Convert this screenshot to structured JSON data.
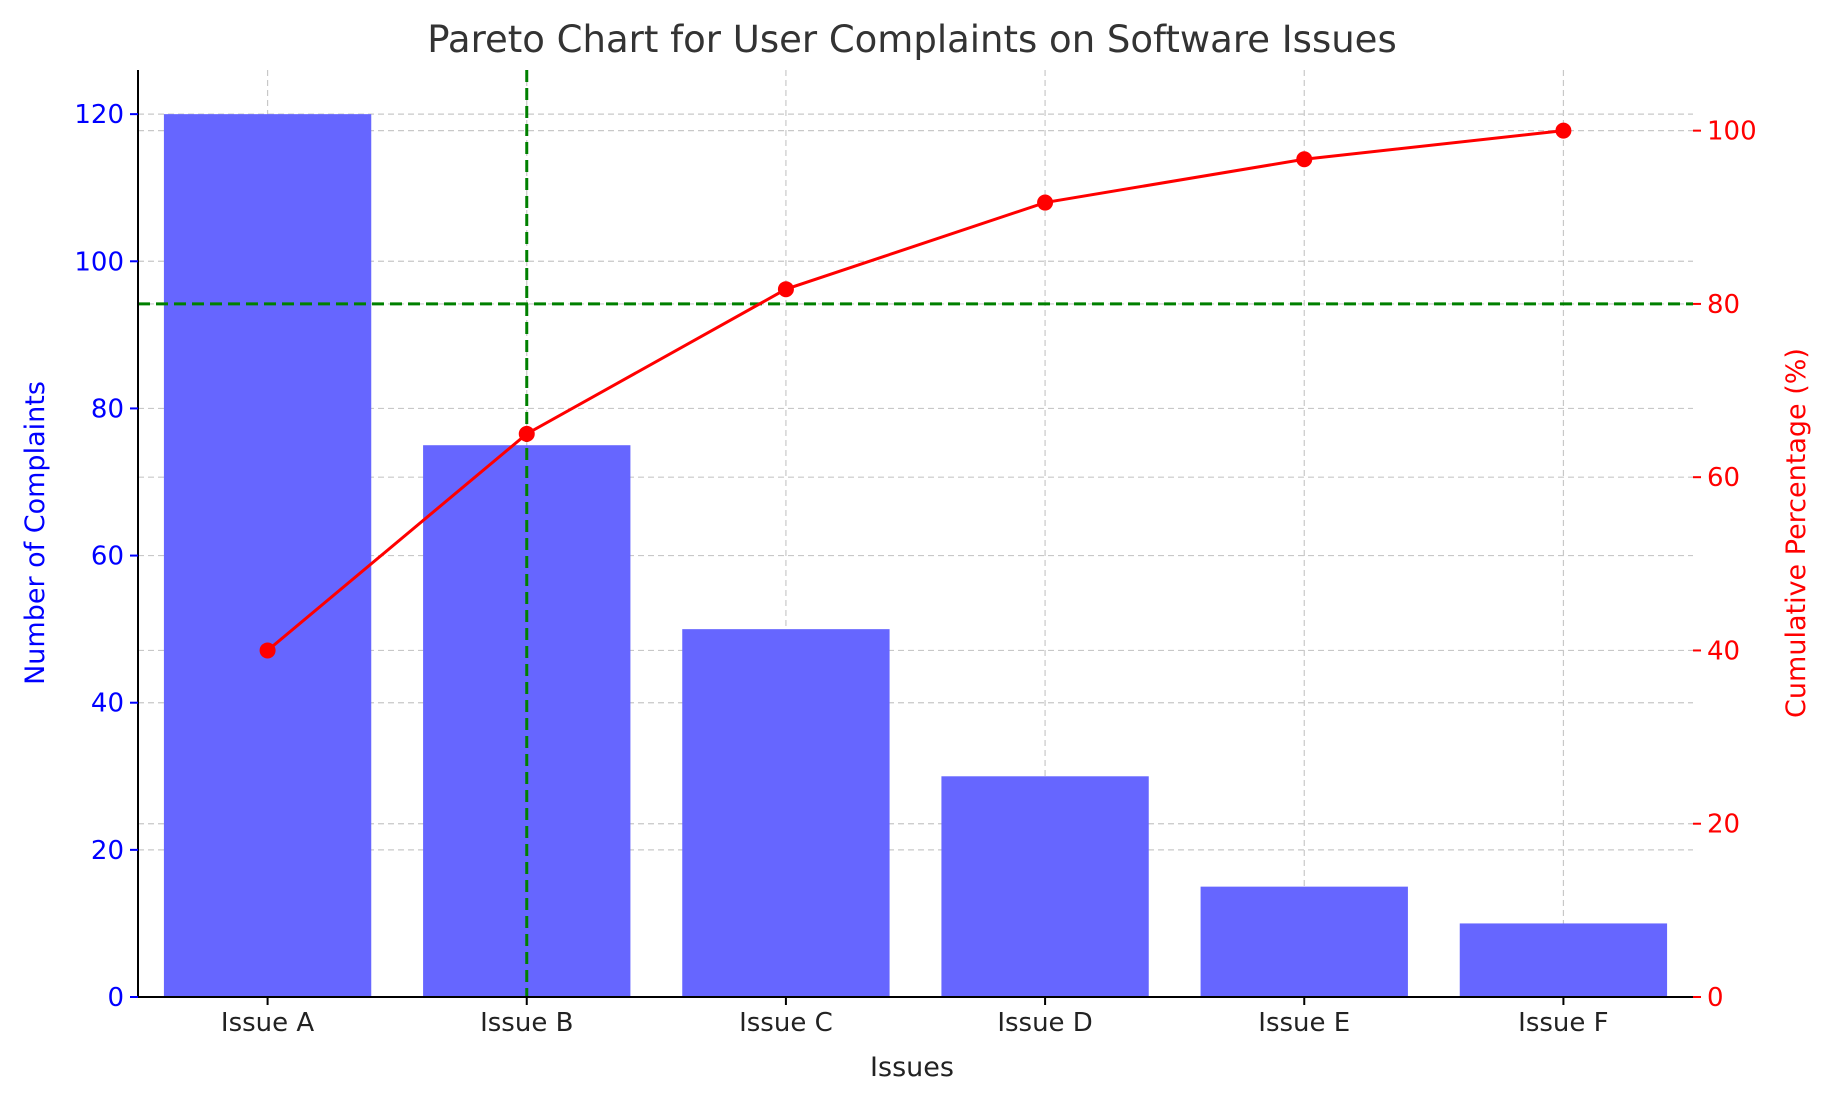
{
  "colors": {
    "bar": "#6666ff",
    "left_axis": "#0000ff",
    "right_axis": "#ff0000",
    "cumulative_line": "#ff0000",
    "threshold_line": "#008000",
    "grid": "#c8c8c8"
  },
  "chart_data": {
    "type": "bar",
    "title": "Pareto Chart for User Complaints on Software Issues",
    "xlabel": "Issues",
    "ylabel": "Number of Complaints",
    "y2label": "Cumulative Percentage (%)",
    "categories": [
      "Issue A",
      "Issue B",
      "Issue C",
      "Issue D",
      "Issue E",
      "Issue F"
    ],
    "series": [
      {
        "type": "bar",
        "axis": "left",
        "values": [
          120,
          75,
          50,
          30,
          15,
          10
        ]
      },
      {
        "type": "line",
        "axis": "right",
        "marker": "circle",
        "values": [
          40.0,
          65.0,
          81.7,
          91.7,
          96.7,
          100.0
        ]
      }
    ],
    "ylim": [
      0,
      126
    ],
    "y2lim": [
      0,
      107
    ],
    "yticks": [
      0,
      20,
      40,
      60,
      80,
      100,
      120
    ],
    "y2ticks": [
      0,
      20,
      40,
      60,
      80,
      100
    ],
    "threshold": {
      "y2": 80,
      "category": "Issue B",
      "style": "dashed"
    },
    "grid": true
  }
}
